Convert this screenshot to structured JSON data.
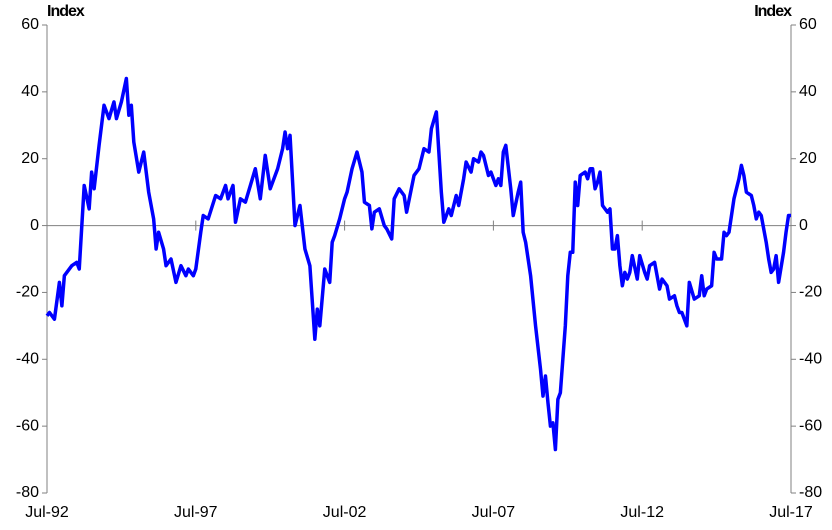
{
  "chart_data": {
    "type": "line",
    "ylabel": "Index",
    "y2label": "Index",
    "ylim": [
      -80,
      60
    ],
    "yticks": [
      -80,
      -60,
      -40,
      -20,
      0,
      20,
      40,
      60
    ],
    "y2lim": [
      -80,
      60
    ],
    "y2ticks": [
      -80,
      -60,
      -40,
      -20,
      0,
      20,
      40,
      60
    ],
    "xlim": [
      "1992-07",
      "2017-07"
    ],
    "xticks": [
      {
        "value": "1992-07",
        "label": "Jul-92"
      },
      {
        "value": "1997-07",
        "label": "Jul-97"
      },
      {
        "value": "2002-07",
        "label": "Jul-02"
      },
      {
        "value": "2007-07",
        "label": "Jul-07"
      },
      {
        "value": "2012-07",
        "label": "Jul-12"
      },
      {
        "value": "2017-07",
        "label": "Jul-17"
      }
    ],
    "x": [
      "1992-07",
      "1992-08",
      "1992-10",
      "1992-12",
      "1993-01",
      "1993-02",
      "1993-05",
      "1993-07",
      "1993-08",
      "1993-10",
      "1993-12",
      "1994-01",
      "1994-02",
      "1994-04",
      "1994-06",
      "1994-08",
      "1994-10",
      "1994-11",
      "1995-01",
      "1995-03",
      "1995-04",
      "1995-05",
      "1995-06",
      "1995-08",
      "1995-10",
      "1995-12",
      "1996-02",
      "1996-03",
      "1996-04",
      "1996-06",
      "1996-07",
      "1996-09",
      "1996-11",
      "1997-01",
      "1997-03",
      "1997-04",
      "1997-06",
      "1997-07",
      "1997-09",
      "1997-10",
      "1997-12",
      "1998-03",
      "1998-05",
      "1998-07",
      "1998-08",
      "1998-10",
      "1998-11",
      "1999-01",
      "1999-03",
      "1999-05",
      "1999-07",
      "1999-09",
      "1999-11",
      "2000-01",
      "2000-04",
      "2000-06",
      "2000-07",
      "2000-08",
      "2000-09",
      "2000-11",
      "2001-01",
      "2001-03",
      "2001-05",
      "2001-07",
      "2001-08",
      "2001-09",
      "2001-11",
      "2002-01",
      "2002-02",
      "2002-03",
      "2002-05",
      "2002-07",
      "2002-08",
      "2002-10",
      "2002-12",
      "2003-02",
      "2003-03",
      "2003-05",
      "2003-06",
      "2003-07",
      "2003-09",
      "2003-11",
      "2003-12",
      "2004-02",
      "2004-03",
      "2004-05",
      "2004-07",
      "2004-08",
      "2004-11",
      "2005-01",
      "2005-03",
      "2005-05",
      "2005-06",
      "2005-08",
      "2005-09",
      "2005-10",
      "2005-11",
      "2006-01",
      "2006-02",
      "2006-04",
      "2006-05",
      "2006-07",
      "2006-08",
      "2006-10",
      "2006-11",
      "2007-01",
      "2007-02",
      "2007-03",
      "2007-05",
      "2007-06",
      "2007-08",
      "2007-09",
      "2007-10",
      "2007-11",
      "2007-12",
      "2008-02",
      "2008-03",
      "2008-05",
      "2008-06",
      "2008-07",
      "2008-08",
      "2008-10",
      "2008-12",
      "2009-02",
      "2009-03",
      "2009-04",
      "2009-05",
      "2009-06",
      "2009-07",
      "2009-08",
      "2009-09",
      "2009-10",
      "2009-11",
      "2009-12",
      "2010-01",
      "2010-02",
      "2010-03",
      "2010-04",
      "2010-05",
      "2010-06",
      "2010-08",
      "2010-09",
      "2010-10",
      "2010-11",
      "2010-12",
      "2011-01",
      "2011-02",
      "2011-03",
      "2011-05",
      "2011-06",
      "2011-07",
      "2011-08",
      "2011-09",
      "2011-10",
      "2011-11",
      "2011-12",
      "2012-01",
      "2012-02",
      "2012-03",
      "2012-05",
      "2012-06",
      "2012-08",
      "2012-09",
      "2012-10",
      "2012-12",
      "2013-02",
      "2013-03",
      "2013-05",
      "2013-06",
      "2013-08",
      "2013-09",
      "2013-10",
      "2013-11",
      "2014-01",
      "2014-02",
      "2014-04",
      "2014-06",
      "2014-07",
      "2014-08",
      "2014-09",
      "2014-11",
      "2014-12",
      "2015-01",
      "2015-03",
      "2015-04",
      "2015-05",
      "2015-06",
      "2015-08",
      "2015-10",
      "2015-11",
      "2015-12",
      "2016-01",
      "2016-03",
      "2016-04",
      "2016-05",
      "2016-06",
      "2016-07",
      "2016-09",
      "2016-10",
      "2016-11",
      "2016-12",
      "2017-01",
      "2017-02",
      "2017-04",
      "2017-05",
      "2017-06",
      "2017-07"
    ],
    "series": [
      {
        "color": "#0000ff",
        "values": [
          -27,
          -26,
          -28,
          -17,
          -24,
          -15,
          -12,
          -11,
          -13,
          12,
          5,
          16,
          11,
          24,
          36,
          32,
          37,
          32,
          37,
          44,
          33,
          36,
          25,
          16,
          22,
          10,
          2,
          -7,
          -2,
          -7,
          -12,
          -10,
          -17,
          -12,
          -15,
          -13,
          -15,
          -13,
          -2,
          3,
          2,
          9,
          8,
          12,
          8,
          12,
          1,
          8,
          7,
          12,
          17,
          8,
          21,
          11,
          17,
          23,
          28,
          23,
          27,
          0,
          6,
          -7,
          -12,
          -34,
          -25,
          -30,
          -13,
          -17,
          -5,
          -3,
          2,
          8,
          10,
          17,
          22,
          16,
          7,
          6,
          -1,
          4,
          5,
          0,
          -1,
          -4,
          8,
          11,
          9,
          4,
          15,
          17,
          23,
          22,
          29,
          34,
          22,
          10,
          1,
          5,
          3,
          9,
          6,
          14,
          19,
          16,
          20,
          19,
          22,
          21,
          15,
          16,
          12,
          14,
          12,
          22,
          24,
          11,
          3,
          10,
          13,
          -2,
          -5,
          -15,
          -30,
          -43,
          -51,
          -45,
          -53,
          -60,
          -59,
          -67,
          -52,
          -50,
          -40,
          -30,
          -15,
          -8,
          -8,
          13,
          6,
          15,
          16,
          14,
          17,
          17,
          11,
          13,
          16,
          6,
          4,
          5,
          -7,
          -7,
          -3,
          -12,
          -18,
          -14,
          -16,
          -14,
          -9,
          -16,
          -9,
          -14,
          -16,
          -12,
          -11,
          -19,
          -16,
          -18,
          -22,
          -21,
          -24,
          -26,
          -26,
          -30,
          -17,
          -22,
          -21,
          -15,
          -21,
          -19,
          -18,
          -8,
          -10,
          -10,
          -2,
          -3,
          -2,
          8,
          14,
          18,
          15,
          10,
          9,
          6,
          2,
          4,
          3,
          -5,
          -10,
          -14,
          -13,
          -9,
          -17,
          -8,
          -2,
          3,
          3
        ]
      }
    ]
  }
}
